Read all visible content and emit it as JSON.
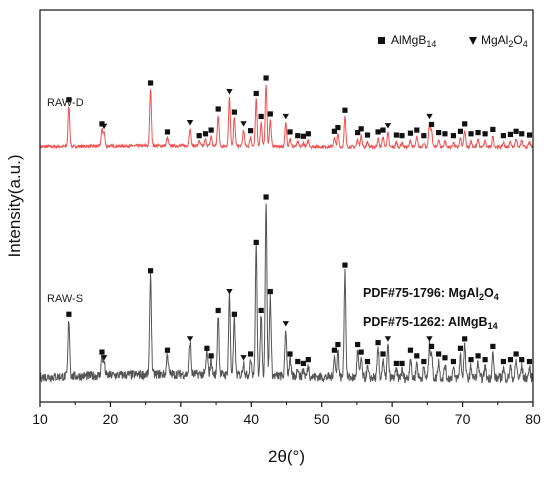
{
  "chart_data": {
    "type": "line",
    "xlabel": "2θ(°)",
    "ylabel": "Intensity(a.u.)",
    "xlim": [
      10,
      80
    ],
    "xticks": [
      "10",
      "20",
      "30",
      "40",
      "50",
      "60",
      "70",
      "80"
    ],
    "y_ticks_shown": false,
    "grid": false,
    "legend": {
      "placement": "top-right",
      "entries": [
        {
          "marker": "square",
          "base": "AlMgB",
          "sub": "14"
        },
        {
          "marker": "triangle-down",
          "base": "MgAl",
          "sub1": "2",
          "mid": "O",
          "sub2": "4"
        }
      ]
    },
    "reference_labels": [
      {
        "prefix": "PDF#75-1796: ",
        "base": "MgAl",
        "sub1": "2",
        "mid": "O",
        "sub2": "4"
      },
      {
        "prefix": "PDF#75-1262: ",
        "base": "AlMgB",
        "sub": "14"
      }
    ],
    "series": [
      {
        "name": "RAW-D",
        "color": "#f05050",
        "baseline": 0.1,
        "peaks": [
          [
            14.1,
            0.65,
            "s"
          ],
          [
            18.8,
            0.26,
            "s"
          ],
          [
            19.1,
            0.22,
            "t"
          ],
          [
            25.7,
            0.92,
            "s"
          ],
          [
            28.1,
            0.13,
            "s"
          ],
          [
            31.3,
            0.28,
            "t"
          ],
          [
            32.6,
            0.07,
            "s"
          ],
          [
            33.5,
            0.1,
            "s"
          ],
          [
            34.3,
            0.16,
            "s"
          ],
          [
            35.3,
            0.5,
            "s"
          ],
          [
            36.9,
            0.78,
            "t"
          ],
          [
            37.6,
            0.45,
            "s"
          ],
          [
            38.9,
            0.26,
            "t"
          ],
          [
            39.9,
            0.15,
            "s"
          ],
          [
            40.7,
            0.75,
            "s"
          ],
          [
            41.4,
            0.38,
            "s"
          ],
          [
            42.1,
            1.0,
            "s"
          ],
          [
            42.7,
            0.42,
            "s"
          ],
          [
            44.9,
            0.38,
            "t"
          ],
          [
            45.5,
            0.13,
            "s"
          ],
          [
            46.6,
            0.07,
            "s"
          ],
          [
            47.4,
            0.06,
            "s"
          ],
          [
            48.1,
            0.1,
            "s"
          ],
          [
            51.8,
            0.14,
            "s"
          ],
          [
            52.3,
            0.2,
            "s"
          ],
          [
            53.3,
            0.48,
            "s"
          ],
          [
            55.1,
            0.12,
            "s"
          ],
          [
            55.6,
            0.18,
            "s"
          ],
          [
            56.5,
            0.08,
            "s"
          ],
          [
            58.0,
            0.13,
            "s"
          ],
          [
            58.7,
            0.16,
            "s"
          ],
          [
            59.4,
            0.23,
            "t"
          ],
          [
            60.6,
            0.08,
            "s"
          ],
          [
            61.4,
            0.07,
            "s"
          ],
          [
            62.6,
            0.11,
            "s"
          ],
          [
            63.5,
            0.16,
            "s"
          ],
          [
            64.5,
            0.07,
            "s"
          ],
          [
            65.3,
            0.38,
            "t"
          ],
          [
            65.6,
            0.25,
            "s"
          ],
          [
            66.6,
            0.12,
            "s"
          ],
          [
            67.5,
            0.1,
            "s"
          ],
          [
            68.7,
            0.07,
            "s"
          ],
          [
            69.7,
            0.14,
            "s"
          ],
          [
            70.3,
            0.26,
            "s"
          ],
          [
            71.2,
            0.1,
            "s"
          ],
          [
            72.2,
            0.12,
            "s"
          ],
          [
            73.2,
            0.1,
            "s"
          ],
          [
            74.3,
            0.17,
            "s"
          ],
          [
            75.8,
            0.07,
            "s"
          ],
          [
            76.8,
            0.09,
            "s"
          ],
          [
            77.6,
            0.14,
            "s"
          ],
          [
            78.4,
            0.1,
            "s"
          ],
          [
            79.5,
            0.08,
            "s"
          ]
        ]
      },
      {
        "name": "RAW-S",
        "color": "#555555",
        "baseline": 0.1,
        "peaks": [
          [
            14.1,
            0.3,
            "s"
          ],
          [
            18.8,
            0.1,
            "s"
          ],
          [
            19.1,
            0.07,
            "t"
          ],
          [
            25.7,
            0.53,
            "s"
          ],
          [
            28.1,
            0.11,
            "s"
          ],
          [
            31.3,
            0.17,
            "t"
          ],
          [
            33.7,
            0.12,
            "s"
          ],
          [
            34.3,
            0.08,
            "s"
          ],
          [
            35.3,
            0.32,
            "s"
          ],
          [
            36.9,
            0.42,
            "t"
          ],
          [
            37.6,
            0.3,
            "s"
          ],
          [
            38.9,
            0.07,
            "t"
          ],
          [
            39.9,
            0.09,
            "s"
          ],
          [
            40.7,
            0.68,
            "s"
          ],
          [
            41.4,
            0.32,
            "s"
          ],
          [
            42.1,
            0.92,
            "s"
          ],
          [
            42.7,
            0.42,
            "s"
          ],
          [
            44.9,
            0.25,
            "t"
          ],
          [
            45.5,
            0.09,
            "s"
          ],
          [
            46.6,
            0.05,
            "s"
          ],
          [
            47.4,
            0.04,
            "s"
          ],
          [
            48.1,
            0.06,
            "s"
          ],
          [
            51.8,
            0.11,
            "s"
          ],
          [
            52.3,
            0.14,
            "s"
          ],
          [
            53.3,
            0.56,
            "s"
          ],
          [
            55.1,
            0.14,
            "s"
          ],
          [
            55.6,
            0.1,
            "s"
          ],
          [
            56.5,
            0.05,
            "s"
          ],
          [
            58.0,
            0.15,
            "s"
          ],
          [
            58.7,
            0.09,
            "s"
          ],
          [
            59.4,
            0.17,
            "t"
          ],
          [
            60.6,
            0.04,
            "s"
          ],
          [
            61.4,
            0.04,
            "s"
          ],
          [
            62.6,
            0.11,
            "s"
          ],
          [
            63.5,
            0.08,
            "s"
          ],
          [
            64.5,
            0.05,
            "s"
          ],
          [
            65.3,
            0.17,
            "t"
          ],
          [
            65.6,
            0.13,
            "s"
          ],
          [
            66.6,
            0.09,
            "s"
          ],
          [
            67.5,
            0.07,
            "s"
          ],
          [
            68.7,
            0.05,
            "s"
          ],
          [
            69.7,
            0.12,
            "s"
          ],
          [
            70.3,
            0.17,
            "s"
          ],
          [
            71.2,
            0.06,
            "s"
          ],
          [
            72.2,
            0.08,
            "s"
          ],
          [
            73.2,
            0.06,
            "s"
          ],
          [
            74.3,
            0.13,
            "s"
          ],
          [
            75.8,
            0.05,
            "s"
          ],
          [
            76.8,
            0.06,
            "s"
          ],
          [
            77.6,
            0.09,
            "s"
          ],
          [
            78.4,
            0.06,
            "s"
          ],
          [
            79.5,
            0.05,
            "s"
          ]
        ]
      }
    ]
  }
}
